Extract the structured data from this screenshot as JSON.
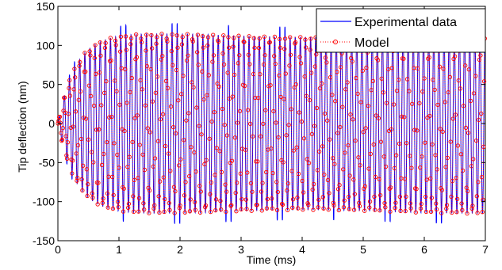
{
  "chart_data": {
    "type": "line",
    "title": "",
    "xlabel": "Time (ms)",
    "ylabel": "Tip deflection (nm)",
    "xlim": [
      0,
      7
    ],
    "ylim": [
      -150,
      150
    ],
    "xticks": [
      0,
      1,
      2,
      3,
      4,
      5,
      6,
      7
    ],
    "yticks": [
      150,
      100,
      50,
      0,
      -50,
      -100,
      -150
    ],
    "grid": false,
    "legend_position": "top-right",
    "oscillation": {
      "frequency_khz": 11.9,
      "steady_amplitude_nm": 113,
      "rise_time_constant_ms": 0.28,
      "peak_amplitude_nm": 126
    },
    "series": [
      {
        "name": "Experimental data",
        "color": "#0000ff",
        "style": "solid line"
      },
      {
        "name": "Model",
        "color": "#ff0000",
        "style": "dotted line with circle markers"
      }
    ]
  }
}
